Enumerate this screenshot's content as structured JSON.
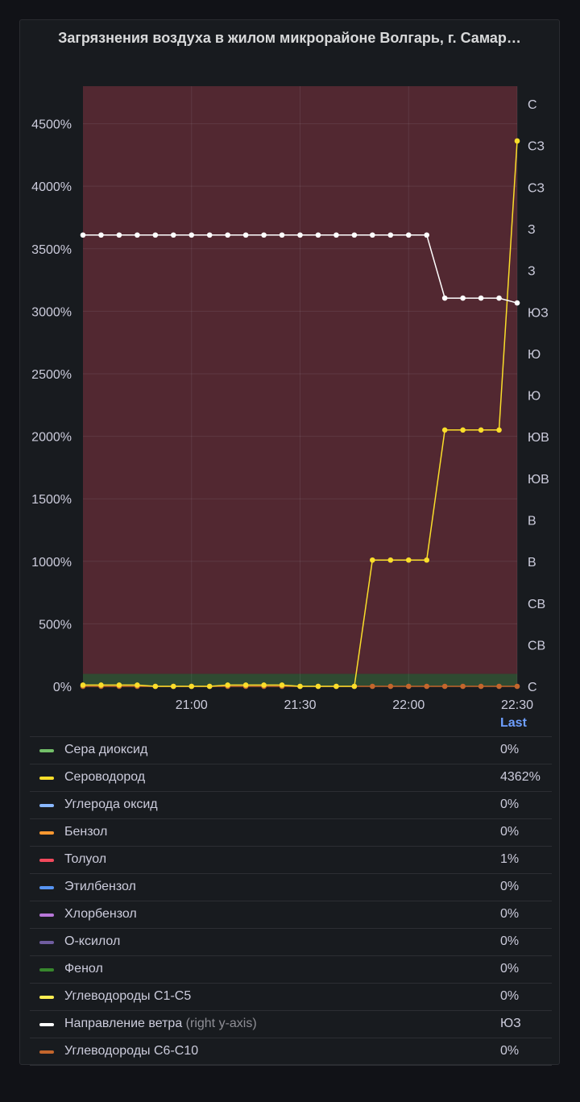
{
  "panel": {
    "title": "Загрязнения воздуха в жилом микрорайоне Волгарь, г. Самар…"
  },
  "legend": {
    "header": "Last",
    "items": [
      {
        "name": "Сера диоксид",
        "note": "",
        "value": "0%",
        "color": "#73bf69"
      },
      {
        "name": "Сероводород",
        "note": "",
        "value": "4362%",
        "color": "#fade2a"
      },
      {
        "name": "Углерода оксид",
        "note": "",
        "value": "0%",
        "color": "#8ab8ff"
      },
      {
        "name": "Бензол",
        "note": "",
        "value": "0%",
        "color": "#ff9830"
      },
      {
        "name": "Толуол",
        "note": "",
        "value": "1%",
        "color": "#f2495c"
      },
      {
        "name": "Этилбензол",
        "note": "",
        "value": "0%",
        "color": "#5794f2"
      },
      {
        "name": "Хлорбензол",
        "note": "",
        "value": "0%",
        "color": "#b877d9"
      },
      {
        "name": "О-ксилол",
        "note": "",
        "value": "0%",
        "color": "#705da0"
      },
      {
        "name": "Фенол",
        "note": "",
        "value": "0%",
        "color": "#37872d"
      },
      {
        "name": "Углеводороды С1-С5",
        "note": "",
        "value": "0%",
        "color": "#ffee52"
      },
      {
        "name": "Направление ветра",
        "note": "(right y-axis)",
        "value": "ЮЗ",
        "color": "#ffffff"
      },
      {
        "name": "Углеводороды С6-С10",
        "note": "",
        "value": "0%",
        "color": "#c4662c"
      }
    ]
  },
  "chart_data": {
    "type": "line",
    "left_axis": {
      "ticks": [
        "0%",
        "500%",
        "1000%",
        "1500%",
        "2000%",
        "2500%",
        "3000%",
        "3500%",
        "4000%",
        "4500%"
      ],
      "tick_values": [
        0,
        500,
        1000,
        1500,
        2000,
        2500,
        3000,
        3500,
        4000,
        4500
      ],
      "range": [
        0,
        4800
      ]
    },
    "right_axis": {
      "ticks": [
        "С",
        "СВ",
        "СВ",
        "В",
        "В",
        "ЮВ",
        "ЮВ",
        "Ю",
        "Ю",
        "ЮЗ",
        "З",
        "З",
        "СЗ",
        "СЗ",
        "С"
      ],
      "tick_values": [
        0,
        25.7,
        51.4,
        77.1,
        102.9,
        128.6,
        154.3,
        180,
        205.7,
        231.4,
        257.1,
        282.9,
        308.6,
        334.3,
        360
      ],
      "range": [
        0,
        371
      ]
    },
    "x_axis": {
      "ticks": [
        "21:00",
        "21:30",
        "22:00",
        "22:30"
      ],
      "tick_values": [
        0,
        30,
        60,
        90
      ],
      "range": [
        -30,
        90
      ]
    },
    "thresholds": [
      {
        "from": 0,
        "to": 100,
        "color": "#2f4a31"
      },
      {
        "from": 100,
        "to": 4800,
        "color": "#522831"
      }
    ],
    "series": [
      {
        "name": "Направление ветра",
        "axis": "right",
        "color": "#ffffff",
        "x": [
          -30,
          -25,
          -20,
          -15,
          -10,
          -5,
          0,
          5,
          10,
          15,
          20,
          25,
          30,
          35,
          40,
          45,
          50,
          55,
          60,
          65,
          70,
          75,
          80,
          85,
          90
        ],
        "y": [
          279,
          279,
          279,
          279,
          279,
          279,
          279,
          279,
          279,
          279,
          279,
          279,
          279,
          279,
          279,
          279,
          279,
          279,
          279,
          279,
          240,
          240,
          240,
          240,
          237
        ]
      },
      {
        "name": "Сероводород",
        "axis": "left",
        "color": "#fade2a",
        "x": [
          -30,
          -25,
          -20,
          -15,
          -10,
          -5,
          0,
          5,
          10,
          15,
          20,
          25,
          30,
          35,
          40,
          45,
          50,
          55,
          60,
          65,
          70,
          75,
          80,
          85,
          90
        ],
        "y": [
          10,
          10,
          10,
          10,
          0,
          0,
          0,
          0,
          10,
          10,
          10,
          10,
          0,
          0,
          0,
          0,
          1010,
          1010,
          1010,
          1010,
          2050,
          2050,
          2050,
          2050,
          4362
        ]
      },
      {
        "name": "Углеводороды С6-С10",
        "axis": "left",
        "color": "#c4662c",
        "x": [
          -30,
          -25,
          -20,
          -15,
          -10,
          -5,
          0,
          5,
          10,
          15,
          20,
          25,
          30,
          35,
          40,
          45,
          50,
          55,
          60,
          65,
          70,
          75,
          80,
          85,
          90
        ],
        "y": [
          0,
          0,
          0,
          0,
          0,
          0,
          0,
          0,
          0,
          0,
          0,
          0,
          0,
          0,
          0,
          0,
          0,
          0,
          0,
          0,
          0,
          0,
          0,
          0,
          0
        ]
      }
    ]
  }
}
